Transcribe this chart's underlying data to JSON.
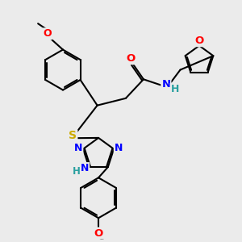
{
  "background_color": "#ebebeb",
  "atom_colors": {
    "C": "#000000",
    "N": "#0000ff",
    "O": "#ff0000",
    "S": "#ccaa00",
    "H": "#2aa0a0"
  },
  "bond_color": "#000000",
  "bond_width": 1.5,
  "figsize": [
    3.0,
    3.0
  ],
  "dpi": 100
}
